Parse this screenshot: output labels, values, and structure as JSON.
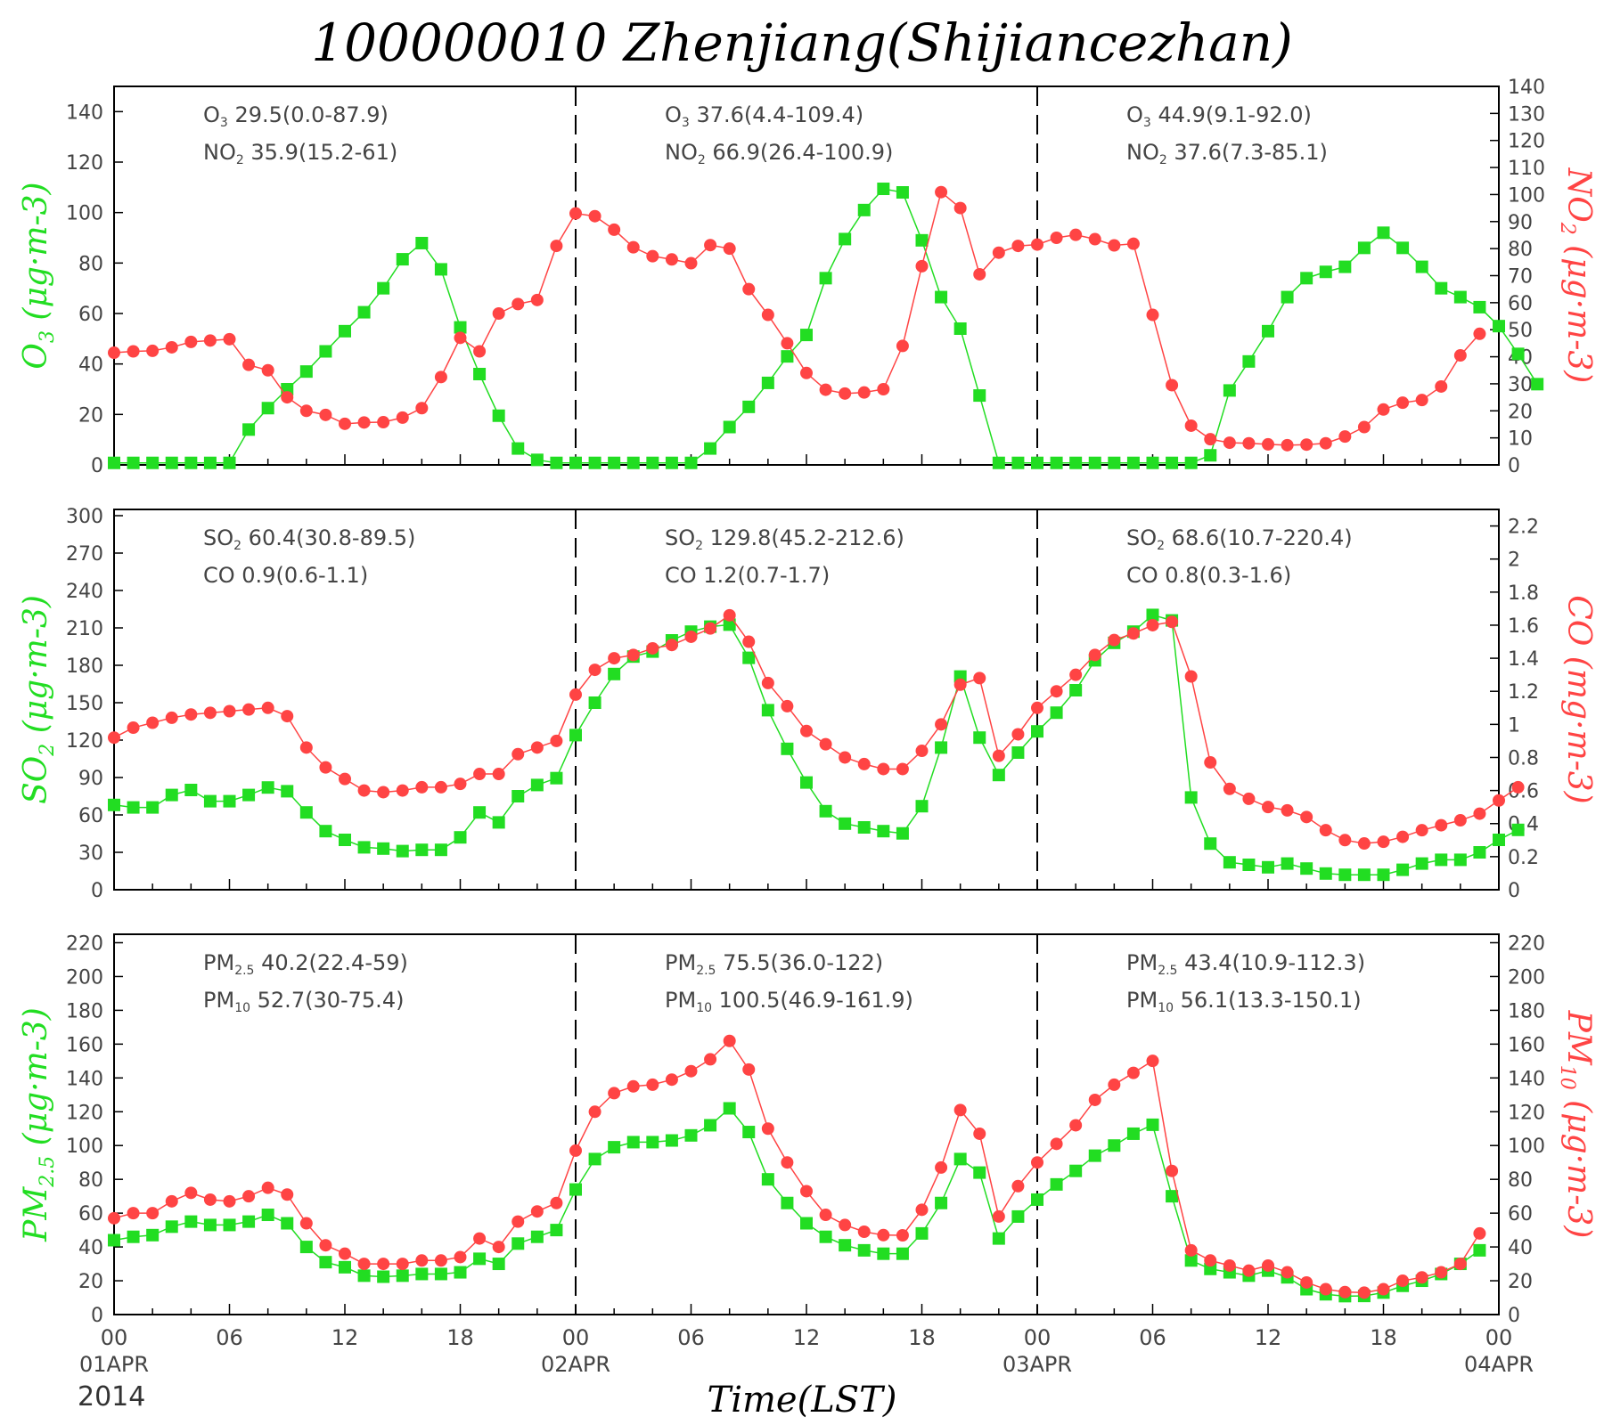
{
  "title": "100000010 Zhenjiang(Shijiancezhan)",
  "xlabel": "Time(LST)",
  "year": "2014",
  "x_tick_labels": [
    "00",
    "06",
    "12",
    "18",
    "00",
    "06",
    "12",
    "18",
    "00",
    "06",
    "12",
    "18",
    "00"
  ],
  "date_labels": [
    "01APR",
    "02APR",
    "03APR",
    "04APR"
  ],
  "colors": {
    "left_series": "#22dd22",
    "right_series": "#ff4444",
    "text": "#444444"
  },
  "chart_data": [
    {
      "type": "line",
      "left_axis": {
        "label": "O3 (μg·m-3)",
        "range": [
          0,
          150
        ],
        "ticks": [
          0,
          20,
          40,
          60,
          80,
          100,
          120,
          140
        ]
      },
      "right_axis": {
        "label": "NO2 (μg·m-3)",
        "range": [
          0,
          140
        ],
        "ticks": [
          0,
          10,
          20,
          30,
          40,
          50,
          60,
          70,
          80,
          90,
          100,
          110,
          120,
          130,
          140
        ]
      },
      "stats": [
        {
          "line1": "O3 29.5(0.0-87.9)",
          "line2": "NO2 35.9(15.2-61)"
        },
        {
          "line1": "O3 37.6(4.4-109.4)",
          "line2": "NO2 66.9(26.4-100.9)"
        },
        {
          "line1": "O3 44.9(9.1-92.0)",
          "line2": "NO2 37.6(7.3-85.1)"
        }
      ],
      "series": [
        {
          "name": "O3",
          "axis": "left",
          "marker": "square",
          "values": [
            0.8,
            0.8,
            0.8,
            0.8,
            0.8,
            0.8,
            0.8,
            14,
            22.5,
            30,
            37,
            45,
            53,
            60.5,
            70,
            81.5,
            87.9,
            77.5,
            54.5,
            36,
            19.5,
            6.5,
            2,
            0.8,
            0.8,
            0.8,
            0.8,
            0.8,
            0.8,
            0.8,
            0.8,
            6.5,
            15,
            23,
            32.5,
            43,
            51.5,
            74,
            89.5,
            101,
            109.4,
            108,
            89,
            66.5,
            54,
            27.5,
            0.8,
            0.8,
            0.8,
            0.8,
            0.8,
            0.8,
            0.8,
            0.8,
            0.8,
            0.8,
            0.8,
            3.8,
            29.5,
            41,
            53,
            66.5,
            74,
            76.5,
            78.5,
            86,
            92,
            86,
            78.5,
            70,
            66.5,
            62.5,
            55,
            44,
            32
          ]
        },
        {
          "name": "NO2",
          "axis": "right",
          "marker": "circle",
          "values": [
            41.5,
            42,
            42.2,
            43.5,
            45.5,
            46,
            46.5,
            37,
            35,
            25,
            20,
            18.5,
            15.2,
            15.7,
            15.8,
            17.5,
            21,
            32.5,
            47,
            42,
            56,
            59.5,
            61,
            81,
            93,
            92,
            87,
            80.5,
            77.2,
            76,
            74.6,
            81.3,
            80,
            65,
            55.5,
            45,
            34,
            27.8,
            26.4,
            26.8,
            28,
            44,
            73.5,
            100.9,
            95,
            70.5,
            78.5,
            81,
            81.5,
            84,
            85.1,
            83.5,
            81.2,
            81.8,
            55.5,
            29.5,
            14.5,
            9.5,
            8.2,
            8,
            7.6,
            7.3,
            7.5,
            8,
            10.5,
            14,
            20.5,
            23,
            24,
            29,
            40.5,
            48.5
          ]
        }
      ]
    },
    {
      "type": "line",
      "left_axis": {
        "label": "SO2 (μg·m-3)",
        "range": [
          0,
          305
        ],
        "ticks": [
          0,
          30,
          60,
          90,
          120,
          150,
          180,
          210,
          240,
          270,
          300
        ]
      },
      "right_axis": {
        "label": "CO (mg·m-3)",
        "range": [
          0,
          2.3
        ],
        "ticks": [
          0,
          0.2,
          0.4,
          0.6,
          0.8,
          1,
          1.2,
          1.4,
          1.6,
          1.8,
          2,
          2.2
        ]
      },
      "stats": [
        {
          "line1": "SO2 60.4(30.8-89.5)",
          "line2": "CO 0.9(0.6-1.1)"
        },
        {
          "line1": "SO2 129.8(45.2-212.6)",
          "line2": "CO 1.2(0.7-1.7)"
        },
        {
          "line1": "SO2 68.6(10.7-220.4)",
          "line2": "CO 0.8(0.3-1.6)"
        }
      ],
      "series": [
        {
          "name": "SO2",
          "axis": "left",
          "marker": "square",
          "values": [
            68,
            66,
            66,
            76,
            80,
            71,
            71,
            76,
            82,
            79,
            62,
            47,
            40,
            34,
            33,
            31,
            32,
            32,
            42,
            62,
            54,
            75,
            84,
            89.5,
            124,
            150,
            173,
            187,
            191,
            200,
            207,
            211,
            212.6,
            186,
            144,
            113,
            86,
            63,
            53,
            50,
            47,
            45.2,
            67,
            114,
            171,
            122,
            92,
            110,
            127,
            142,
            160,
            184,
            198,
            207,
            220.4,
            216,
            74,
            37,
            22,
            20,
            18,
            21,
            17,
            13,
            12,
            12,
            12,
            16,
            21,
            24,
            24,
            30,
            40,
            48
          ]
        },
        {
          "name": "CO",
          "axis": "right",
          "marker": "circle",
          "values": [
            0.92,
            0.98,
            1.01,
            1.04,
            1.06,
            1.07,
            1.08,
            1.09,
            1.1,
            1.05,
            0.86,
            0.74,
            0.67,
            0.6,
            0.59,
            0.6,
            0.62,
            0.62,
            0.64,
            0.7,
            0.7,
            0.82,
            0.86,
            0.9,
            1.18,
            1.33,
            1.4,
            1.42,
            1.46,
            1.48,
            1.53,
            1.58,
            1.66,
            1.5,
            1.25,
            1.11,
            0.96,
            0.88,
            0.8,
            0.76,
            0.73,
            0.73,
            0.84,
            1.0,
            1.24,
            1.28,
            0.81,
            0.94,
            1.1,
            1.2,
            1.3,
            1.42,
            1.51,
            1.55,
            1.6,
            1.62,
            1.29,
            0.77,
            0.61,
            0.55,
            0.5,
            0.48,
            0.44,
            0.36,
            0.3,
            0.28,
            0.29,
            0.32,
            0.36,
            0.39,
            0.42,
            0.46,
            0.54,
            0.62
          ]
        }
      ]
    },
    {
      "type": "line",
      "left_axis": {
        "label": "PM2.5 (μg·m-3)",
        "range": [
          0,
          225
        ],
        "ticks": [
          0,
          20,
          40,
          60,
          80,
          100,
          120,
          140,
          160,
          180,
          200,
          220
        ]
      },
      "right_axis": {
        "label": "PM10 (μg·m-3)",
        "range": [
          0,
          225
        ],
        "ticks": [
          0,
          20,
          40,
          60,
          80,
          100,
          120,
          140,
          160,
          180,
          200,
          220
        ]
      },
      "stats": [
        {
          "line1": "PM2.5 40.2(22.4-59)",
          "line2": "PM10 52.7(30-75.4)"
        },
        {
          "line1": "PM2.5 75.5(36.0-122)",
          "line2": "PM10 100.5(46.9-161.9)"
        },
        {
          "line1": "PM2.5 43.4(10.9-112.3)",
          "line2": "PM10 56.1(13.3-150.1)"
        }
      ],
      "series": [
        {
          "name": "PM2.5",
          "axis": "left",
          "marker": "square",
          "values": [
            44,
            46,
            47,
            52,
            55,
            53,
            53,
            55,
            59,
            54,
            40,
            31,
            28,
            23,
            22.4,
            23,
            24,
            24,
            25,
            33,
            30,
            42,
            46,
            50,
            74,
            92,
            99,
            102,
            102,
            103,
            106,
            112,
            122,
            108,
            80,
            66,
            54,
            46,
            41,
            38,
            36,
            36,
            48,
            66,
            92,
            84,
            45,
            58,
            68,
            77,
            85,
            94,
            100,
            107,
            112.3,
            70,
            32,
            27,
            25,
            23,
            26,
            22,
            15,
            12,
            10.9,
            11,
            13,
            17,
            20,
            24,
            30,
            38
          ]
        },
        {
          "name": "PM10",
          "axis": "right",
          "marker": "circle",
          "values": [
            57,
            60,
            60,
            67,
            72,
            68,
            67,
            70,
            75,
            71,
            54,
            41,
            36,
            30,
            30,
            30,
            32,
            32,
            34,
            45,
            40,
            55,
            61,
            66,
            97,
            120,
            131,
            135,
            136,
            139,
            144,
            151,
            161.9,
            145,
            110,
            90,
            73,
            59,
            53,
            49,
            47,
            46.9,
            62,
            87,
            121,
            107,
            58,
            76,
            90,
            101,
            112,
            127,
            136,
            143,
            150.1,
            85,
            38,
            32,
            29,
            26,
            29,
            25,
            19,
            15,
            13.3,
            13,
            15,
            20,
            22,
            25,
            30,
            48
          ]
        }
      ]
    }
  ]
}
